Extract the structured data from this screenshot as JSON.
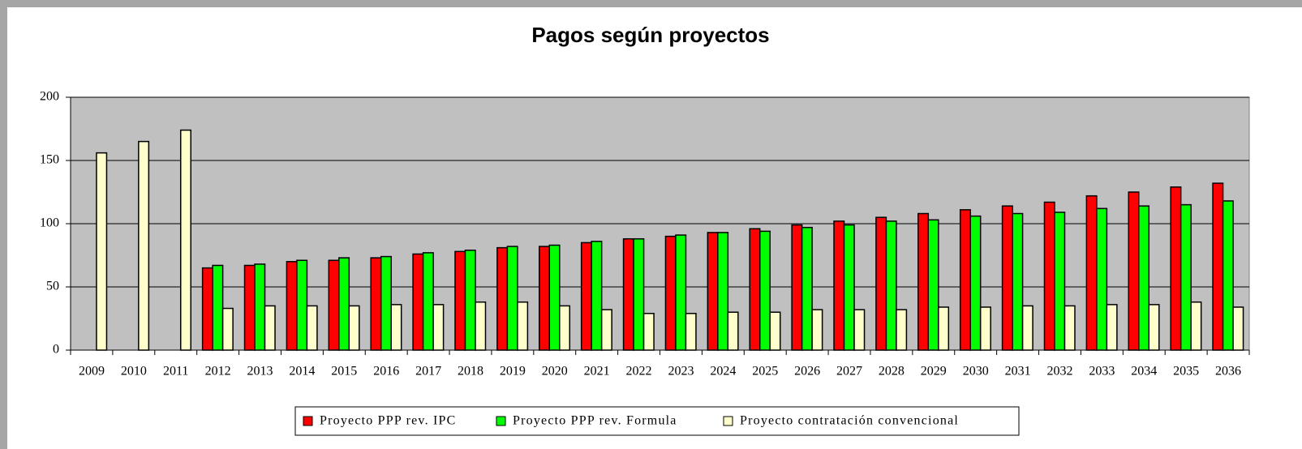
{
  "chart_data": {
    "type": "bar",
    "title": "Pagos según proyectos",
    "categories": [
      "2009",
      "2010",
      "2011",
      "2012",
      "2013",
      "2014",
      "2015",
      "2016",
      "2017",
      "2018",
      "2019",
      "2020",
      "2021",
      "2022",
      "2023",
      "2024",
      "2025",
      "2026",
      "2027",
      "2028",
      "2029",
      "2030",
      "2031",
      "2032",
      "2033",
      "2034",
      "2035",
      "2036"
    ],
    "series": [
      {
        "name": "Proyecto PPP rev. IPC",
        "color": "#ff0000",
        "values": [
          null,
          null,
          null,
          65,
          67,
          70,
          71,
          73,
          76,
          78,
          81,
          82,
          85,
          88,
          90,
          93,
          96,
          99,
          102,
          105,
          108,
          111,
          114,
          117,
          122,
          125,
          129,
          132
        ]
      },
      {
        "name": "Proyecto PPP rev. Formula",
        "color": "#00ff00",
        "values": [
          null,
          null,
          null,
          67,
          68,
          71,
          73,
          74,
          77,
          79,
          82,
          83,
          86,
          88,
          91,
          93,
          94,
          97,
          99,
          102,
          103,
          106,
          108,
          109,
          112,
          114,
          115,
          118
        ]
      },
      {
        "name": "Proyecto contratación convencional",
        "color": "#ffffcc",
        "values": [
          156,
          165,
          174,
          33,
          35,
          35,
          35,
          36,
          36,
          38,
          38,
          35,
          32,
          29,
          29,
          30,
          30,
          32,
          32,
          32,
          34,
          34,
          35,
          35,
          36,
          36,
          38,
          34
        ]
      }
    ],
    "ylim": [
      0,
      200
    ],
    "yticks": [
      0,
      50,
      100,
      150,
      200
    ],
    "grid": true,
    "legend": "bottom"
  }
}
